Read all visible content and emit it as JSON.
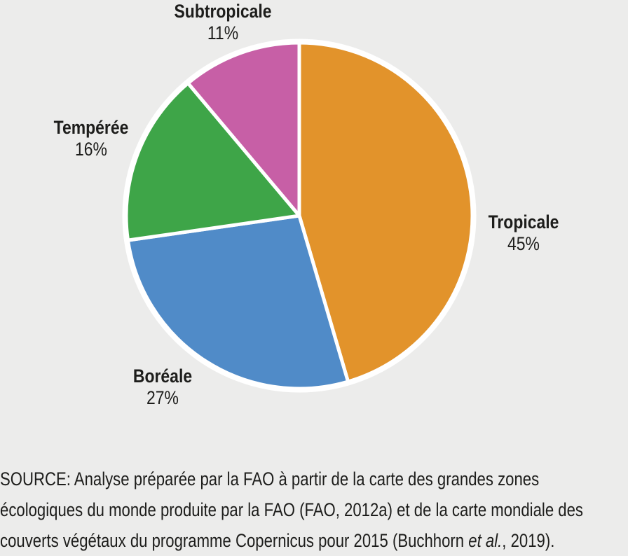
{
  "background_color": "#ECECEB",
  "text_color": "#1D1D1B",
  "chart_data": {
    "type": "pie",
    "title": "",
    "direction": "clockwise",
    "start_angle_deg": 0,
    "legend_position": "none",
    "categories": [
      "Tropicale",
      "Boréale",
      "Tempérée",
      "Subtropicale"
    ],
    "values": [
      45,
      27,
      16,
      11
    ],
    "unit": "%",
    "stroke_color": "#FFFFFF",
    "slices": [
      {
        "label": "Tropicale",
        "pct": "45%",
        "value": 45,
        "color": "#E2932B"
      },
      {
        "label": "Boréale",
        "pct": "27%",
        "value": 27,
        "color": "#508BC8"
      },
      {
        "label": "Tempérée",
        "pct": "16%",
        "value": 16,
        "color": "#3EA548"
      },
      {
        "label": "Subtropicale",
        "pct": "11%",
        "value": 11,
        "color": "#C75FA6"
      }
    ]
  },
  "source_note": {
    "line1": "SOURCE: Analyse préparée par la FAO à partir de la carte des grandes zones",
    "line2": "écologiques du monde produite par la FAO (FAO, 2012a) et de la carte mondiale des",
    "line3_before": "couverts végétaux du programme Copernicus pour 2015 (Buchhorn ",
    "line3_italic": "et al.",
    "line3_after": ", 2019)."
  }
}
